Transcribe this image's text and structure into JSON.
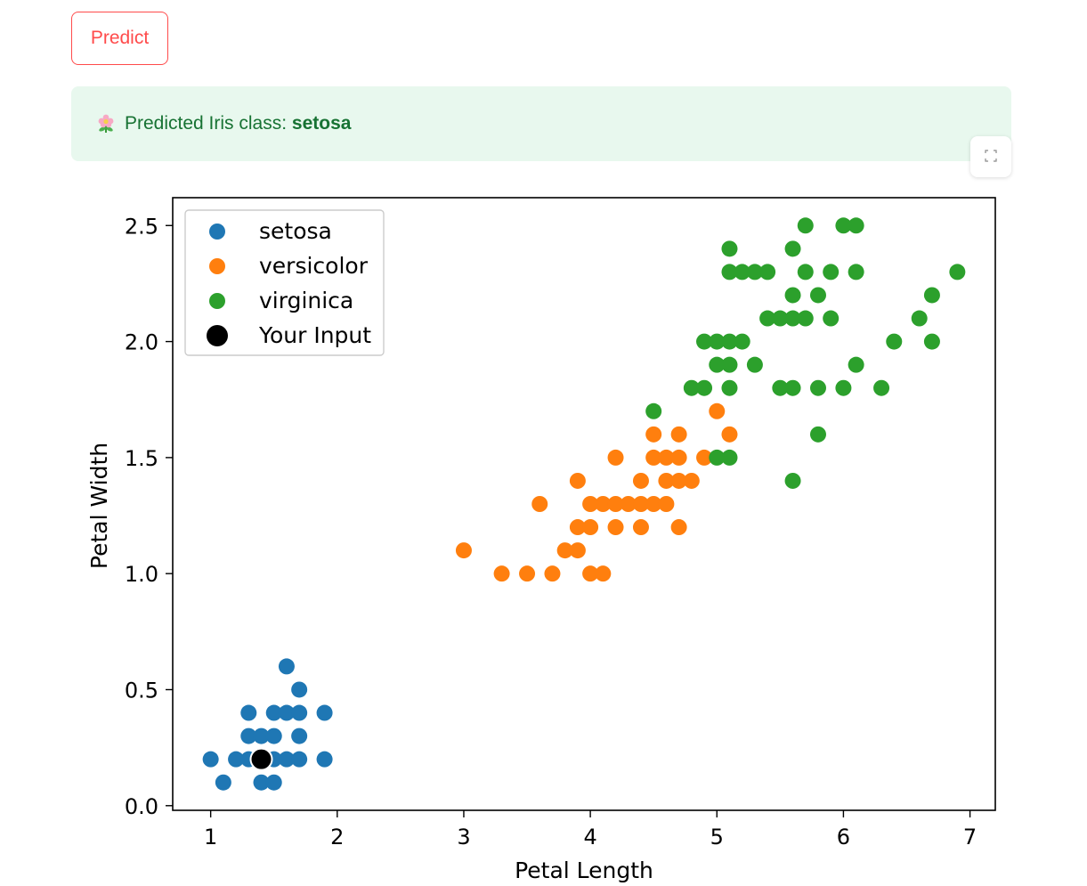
{
  "predict_button": {
    "label": "Predict"
  },
  "result": {
    "prefix": "Predicted Iris class: ",
    "value": "setosa",
    "icon": "flower-icon"
  },
  "expand_button": {
    "icon": "fullscreen-icon"
  },
  "colors": {
    "accent": "#ff4b4b",
    "success_bg": "#e8f8ee",
    "success_text": "#177233",
    "setosa": "#1f77b4",
    "versicolor": "#ff7f0e",
    "virginica": "#2ca02c",
    "input": "#000000"
  },
  "chart_data": {
    "type": "scatter",
    "xlabel": "Petal Length",
    "ylabel": "Petal Width",
    "xlim": [
      0.7,
      7.2
    ],
    "ylim": [
      -0.02,
      2.62
    ],
    "xticks": [
      1,
      2,
      3,
      4,
      5,
      6,
      7
    ],
    "yticks": [
      0.0,
      0.5,
      1.0,
      1.5,
      2.0,
      2.5
    ],
    "xtick_labels": [
      "1",
      "2",
      "3",
      "4",
      "5",
      "6",
      "7"
    ],
    "ytick_labels": [
      "0.0",
      "0.5",
      "1.0",
      "1.5",
      "2.0",
      "2.5"
    ],
    "legend_position": "upper-left",
    "grid": false,
    "series": [
      {
        "name": "setosa",
        "color": "#1f77b4",
        "points": [
          [
            1.0,
            0.2
          ],
          [
            1.1,
            0.1
          ],
          [
            1.2,
            0.2
          ],
          [
            1.3,
            0.2
          ],
          [
            1.3,
            0.3
          ],
          [
            1.3,
            0.4
          ],
          [
            1.4,
            0.1
          ],
          [
            1.4,
            0.2
          ],
          [
            1.4,
            0.3
          ],
          [
            1.5,
            0.1
          ],
          [
            1.5,
            0.2
          ],
          [
            1.5,
            0.3
          ],
          [
            1.5,
            0.4
          ],
          [
            1.6,
            0.2
          ],
          [
            1.6,
            0.4
          ],
          [
            1.6,
            0.6
          ],
          [
            1.7,
            0.2
          ],
          [
            1.7,
            0.3
          ],
          [
            1.7,
            0.4
          ],
          [
            1.7,
            0.5
          ],
          [
            1.9,
            0.2
          ],
          [
            1.9,
            0.4
          ]
        ]
      },
      {
        "name": "versicolor",
        "color": "#ff7f0e",
        "points": [
          [
            3.0,
            1.1
          ],
          [
            3.3,
            1.0
          ],
          [
            3.5,
            1.0
          ],
          [
            3.6,
            1.3
          ],
          [
            3.7,
            1.0
          ],
          [
            3.8,
            1.1
          ],
          [
            3.9,
            1.1
          ],
          [
            3.9,
            1.2
          ],
          [
            3.9,
            1.4
          ],
          [
            4.0,
            1.0
          ],
          [
            4.0,
            1.2
          ],
          [
            4.0,
            1.3
          ],
          [
            4.1,
            1.0
          ],
          [
            4.1,
            1.3
          ],
          [
            4.2,
            1.2
          ],
          [
            4.2,
            1.3
          ],
          [
            4.2,
            1.5
          ],
          [
            4.3,
            1.3
          ],
          [
            4.4,
            1.2
          ],
          [
            4.4,
            1.3
          ],
          [
            4.4,
            1.4
          ],
          [
            4.5,
            1.3
          ],
          [
            4.5,
            1.5
          ],
          [
            4.5,
            1.6
          ],
          [
            4.6,
            1.3
          ],
          [
            4.6,
            1.4
          ],
          [
            4.6,
            1.5
          ],
          [
            4.7,
            1.2
          ],
          [
            4.7,
            1.4
          ],
          [
            4.7,
            1.5
          ],
          [
            4.7,
            1.6
          ],
          [
            4.8,
            1.4
          ],
          [
            4.9,
            1.5
          ],
          [
            5.0,
            1.7
          ],
          [
            5.1,
            1.6
          ]
        ]
      },
      {
        "name": "virginica",
        "color": "#2ca02c",
        "points": [
          [
            4.5,
            1.7
          ],
          [
            4.8,
            1.8
          ],
          [
            4.9,
            1.8
          ],
          [
            4.9,
            2.0
          ],
          [
            5.0,
            1.5
          ],
          [
            5.0,
            1.9
          ],
          [
            5.0,
            2.0
          ],
          [
            5.1,
            1.5
          ],
          [
            5.1,
            1.8
          ],
          [
            5.1,
            1.9
          ],
          [
            5.1,
            2.0
          ],
          [
            5.1,
            2.3
          ],
          [
            5.1,
            2.4
          ],
          [
            5.2,
            2.0
          ],
          [
            5.2,
            2.3
          ],
          [
            5.3,
            1.9
          ],
          [
            5.3,
            2.3
          ],
          [
            5.4,
            2.1
          ],
          [
            5.4,
            2.3
          ],
          [
            5.5,
            1.8
          ],
          [
            5.5,
            2.1
          ],
          [
            5.6,
            1.4
          ],
          [
            5.6,
            1.8
          ],
          [
            5.6,
            2.1
          ],
          [
            5.6,
            2.2
          ],
          [
            5.6,
            2.4
          ],
          [
            5.7,
            2.1
          ],
          [
            5.7,
            2.3
          ],
          [
            5.7,
            2.5
          ],
          [
            5.8,
            1.6
          ],
          [
            5.8,
            1.8
          ],
          [
            5.8,
            2.2
          ],
          [
            5.9,
            2.1
          ],
          [
            5.9,
            2.3
          ],
          [
            6.0,
            1.8
          ],
          [
            6.0,
            2.5
          ],
          [
            6.1,
            1.9
          ],
          [
            6.1,
            2.3
          ],
          [
            6.1,
            2.5
          ],
          [
            6.3,
            1.8
          ],
          [
            6.4,
            2.0
          ],
          [
            6.6,
            2.1
          ],
          [
            6.7,
            2.0
          ],
          [
            6.7,
            2.2
          ],
          [
            6.9,
            2.3
          ]
        ]
      },
      {
        "name": "Your Input",
        "color": "#000000",
        "points": [
          [
            1.4,
            0.2
          ]
        ]
      }
    ]
  }
}
